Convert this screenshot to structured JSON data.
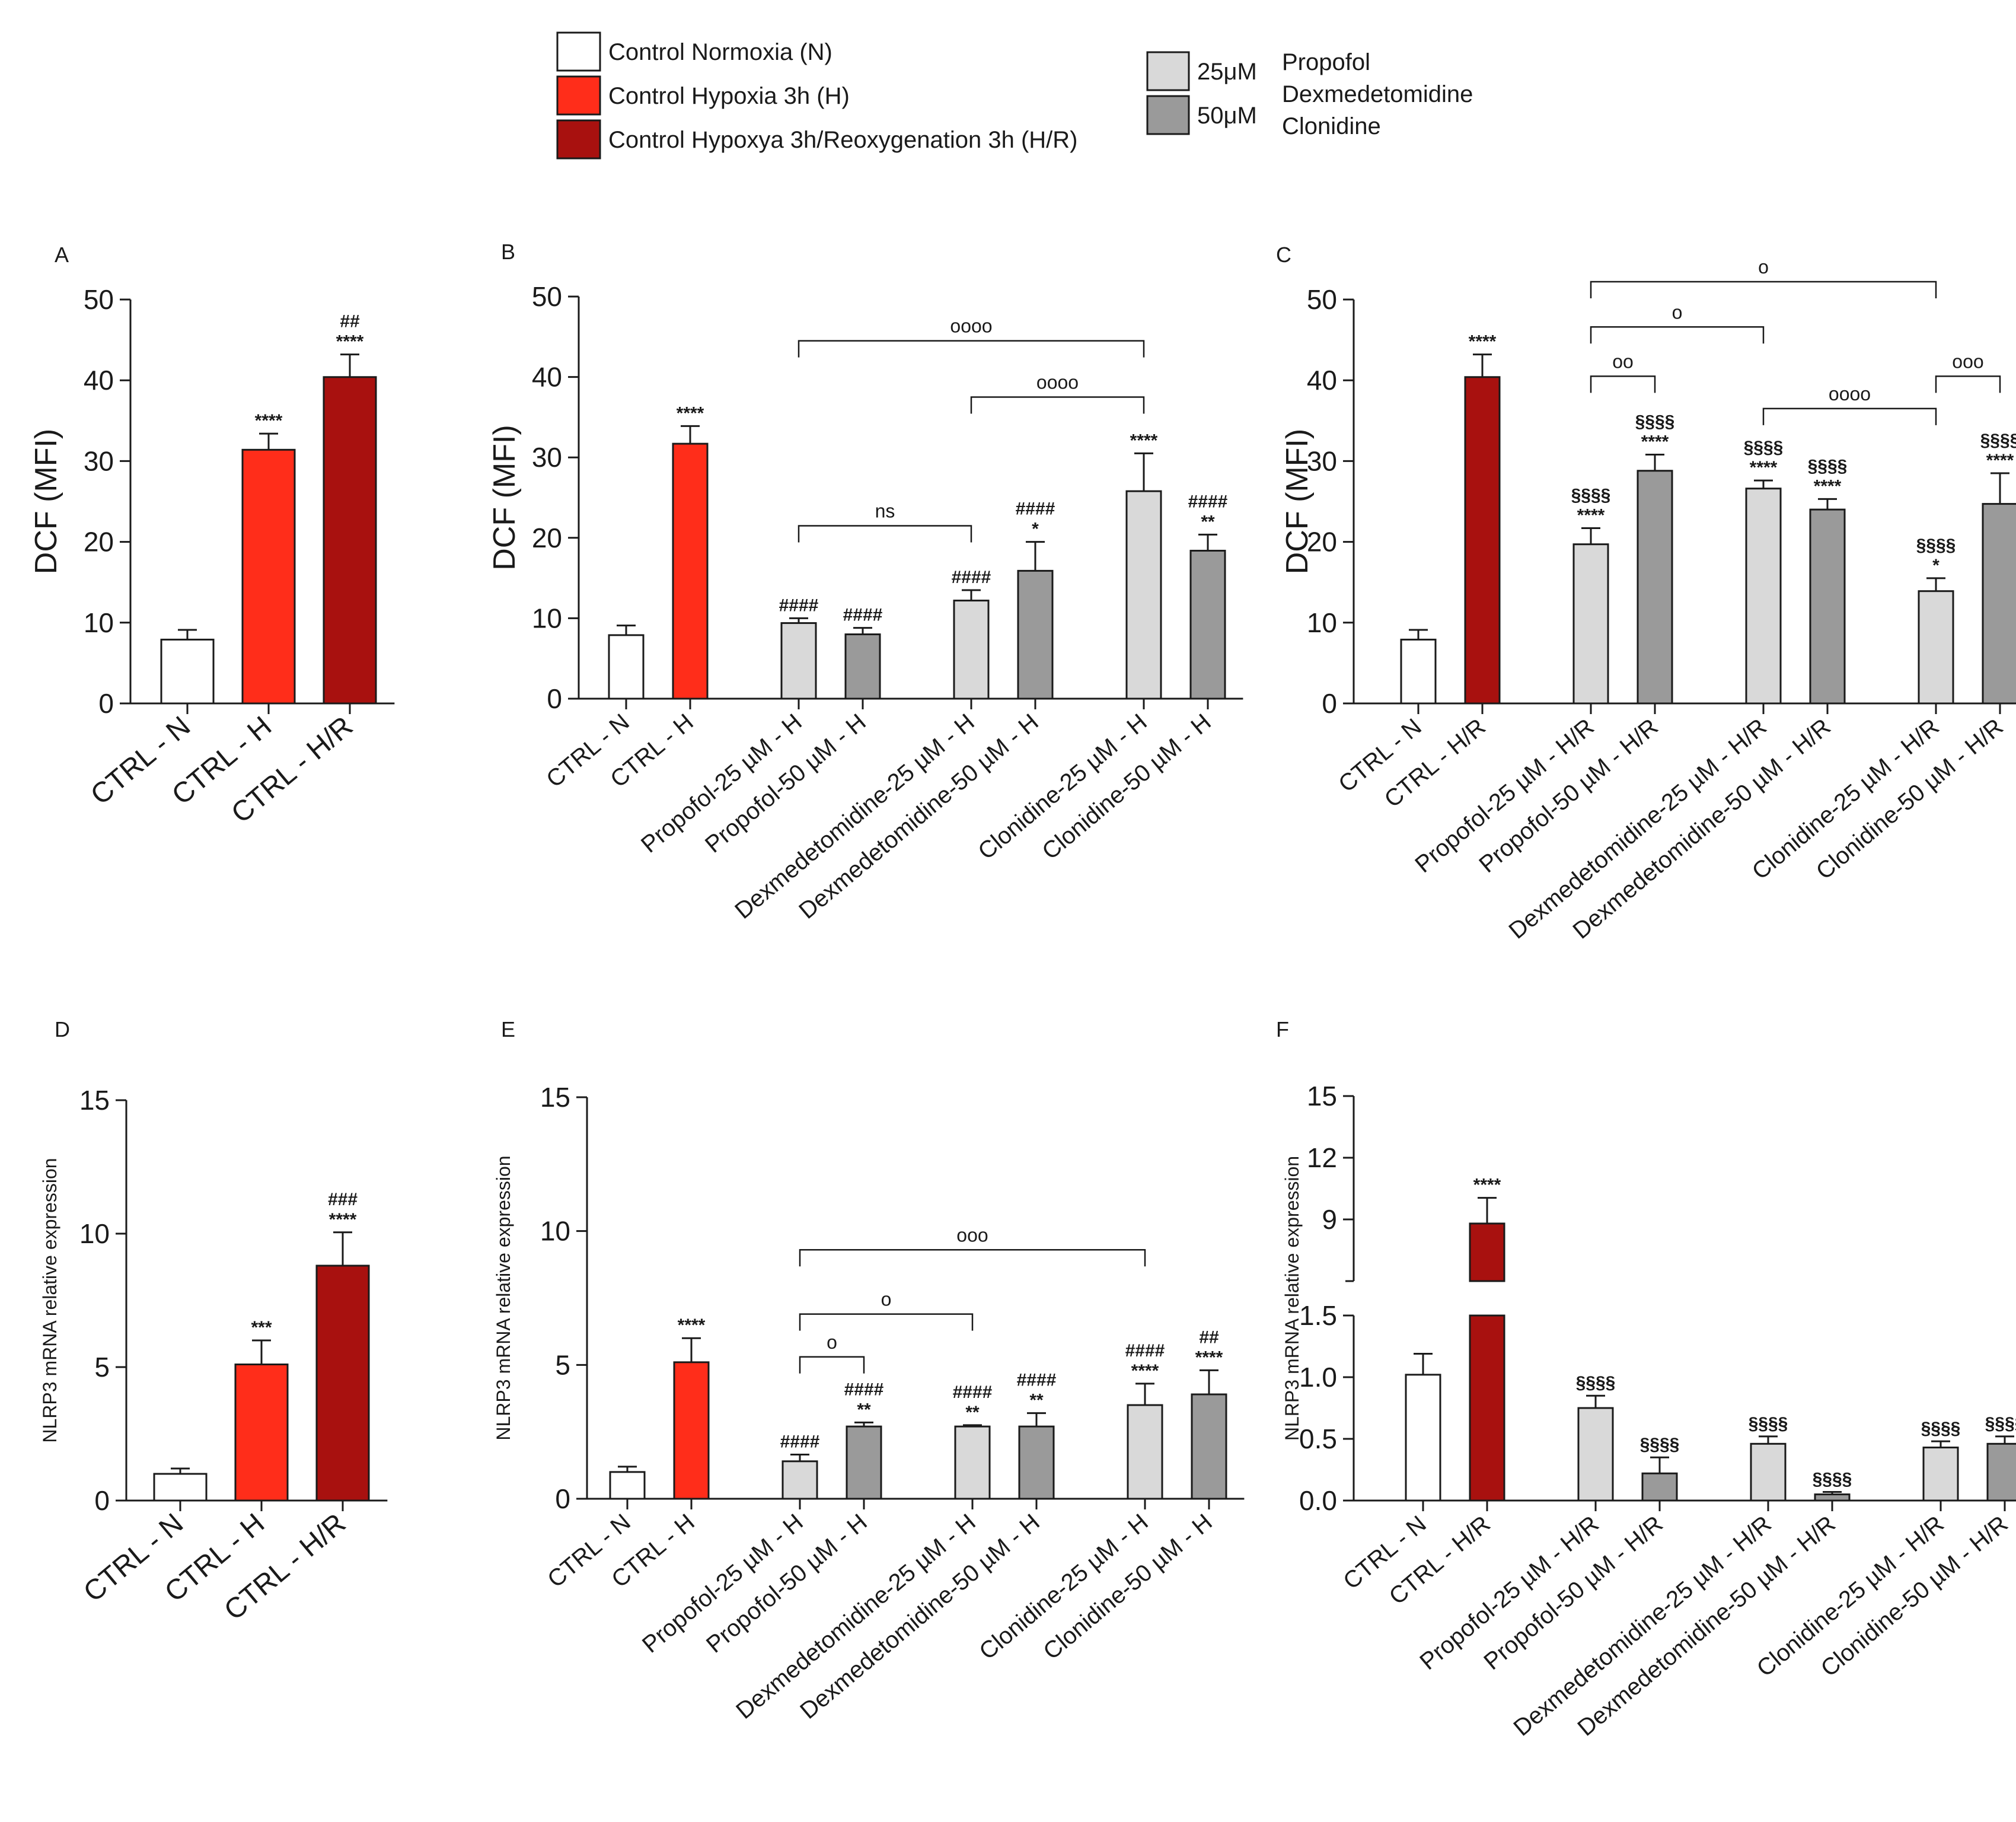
{
  "colors": {
    "N": "#ffffff",
    "H": "#ff2d1a",
    "HR": "#a8110f",
    "c25": "#d9d9d9",
    "c50": "#9a9a9a"
  },
  "legend": {
    "left": [
      {
        "label": "Control Normoxia (N)",
        "color_key": "N"
      },
      {
        "label": "Control Hypoxia 3h (H)",
        "color_key": "H"
      },
      {
        "label": "Control Hypoxya 3h/Reoxygenation 3h (H/R)",
        "color_key": "HR"
      }
    ],
    "right": [
      {
        "label": "25μM",
        "color_key": "c25"
      },
      {
        "label": "50μM",
        "color_key": "c50"
      }
    ],
    "drugs": [
      "Propofol",
      "Dexmedetomidine",
      "Clonidine"
    ]
  },
  "chart_data": [
    {
      "panel": "A",
      "type": "bar",
      "ylabel": "DCF (MFI)",
      "ylim": [
        0,
        50
      ],
      "ticks": [
        "0",
        "10",
        "20",
        "30",
        "40",
        "50"
      ],
      "categories": [
        "CTRL - N",
        "CTRL - H",
        "CTRL - H/R"
      ],
      "values": [
        7.9,
        31.4,
        40.4
      ],
      "errors": [
        1.2,
        2.0,
        2.8
      ],
      "color_keys": [
        "N",
        "H",
        "HR"
      ],
      "annotations": [
        [],
        [
          "****"
        ],
        [
          "##",
          "****"
        ]
      ],
      "brackets": []
    },
    {
      "panel": "B",
      "type": "bar",
      "ylabel": "DCF (MFI)",
      "ylim": [
        0,
        50
      ],
      "ticks": [
        "0",
        "10",
        "20",
        "30",
        "40",
        "50"
      ],
      "categories": [
        "CTRL - N",
        "CTRL - H",
        "Propofol-25 µM - H",
        "Propofol-50 µM - H",
        "Dexmedetomidine-25 µM - H",
        "Dexmedetomidine-50 µM - H",
        "Clonidine-25 µM - H",
        "Clonidine-50 µM - H"
      ],
      "values": [
        7.9,
        31.7,
        9.4,
        8.0,
        12.2,
        15.9,
        25.8,
        18.4
      ],
      "errors": [
        1.2,
        2.2,
        0.6,
        0.8,
        1.3,
        3.6,
        4.7,
        2.0
      ],
      "color_keys": [
        "N",
        "H",
        "c25",
        "c50",
        "c25",
        "c50",
        "c25",
        "c50"
      ],
      "annotations": [
        [],
        [
          "****"
        ],
        [
          "####"
        ],
        [
          "####"
        ],
        [
          "####"
        ],
        [
          "####",
          "*"
        ],
        [
          "****"
        ],
        [
          "####",
          "**"
        ]
      ],
      "brackets": [
        {
          "from": 2,
          "to": 6,
          "label": "oooo",
          "y": 44.5
        },
        {
          "from": 4,
          "to": 6,
          "label": "oooo",
          "y": 37.5
        },
        {
          "from": 2,
          "to": 4,
          "label": "ns",
          "y": 21.5
        }
      ]
    },
    {
      "panel": "C",
      "type": "bar",
      "ylabel": "DCF (MFI)",
      "ylim": [
        0,
        50
      ],
      "ticks": [
        "0",
        "10",
        "20",
        "30",
        "40",
        "50"
      ],
      "categories": [
        "CTRL - N",
        "CTRL - H/R",
        "Propofol-25 µM - H/R",
        "Propofol-50 µM - H/R",
        "Dexmedetomidine-25 µM - H/R",
        "Dexmedetomidine-50 µM - H/R",
        "Clonidine-25 µM - H/R",
        "Clonidine-50 µM - H/R"
      ],
      "values": [
        7.9,
        40.4,
        19.7,
        28.8,
        26.6,
        24.0,
        13.9,
        24.7
      ],
      "errors": [
        1.2,
        2.8,
        2.0,
        2.0,
        1.0,
        1.3,
        1.6,
        3.8
      ],
      "color_keys": [
        "N",
        "HR",
        "c25",
        "c50",
        "c25",
        "c50",
        "c25",
        "c50"
      ],
      "annotations": [
        [],
        [
          "****"
        ],
        [
          "§§§§",
          "****"
        ],
        [
          "§§§§",
          "****"
        ],
        [
          "§§§§",
          "****"
        ],
        [
          "§§§§",
          "****"
        ],
        [
          "§§§§",
          "*"
        ],
        [
          "§§§§",
          "****"
        ]
      ],
      "brackets": [
        {
          "from": 2,
          "to": 6,
          "label": "o",
          "y": 52.2
        },
        {
          "from": 2,
          "to": 4,
          "label": "o",
          "y": 46.6
        },
        {
          "from": 2,
          "to": 3,
          "label": "oo",
          "y": 40.5
        },
        {
          "from": 4,
          "to": 6,
          "label": "oooo",
          "y": 36.5
        },
        {
          "from": 6,
          "to": 7,
          "label": "ooo",
          "y": 40.5
        }
      ]
    },
    {
      "panel": "D",
      "type": "bar",
      "ylabel": "NLRP3 mRNA relative expression",
      "ylim": [
        0,
        15
      ],
      "ticks": [
        "0",
        "5",
        "10",
        "15"
      ],
      "categories": [
        "CTRL - N",
        "CTRL - H",
        "CTRL - H/R"
      ],
      "values": [
        1.0,
        5.1,
        8.8
      ],
      "errors": [
        0.2,
        0.9,
        1.25
      ],
      "color_keys": [
        "N",
        "H",
        "HR"
      ],
      "annotations": [
        [],
        [
          "***"
        ],
        [
          "###",
          "****"
        ]
      ],
      "brackets": []
    },
    {
      "panel": "E",
      "type": "bar",
      "ylabel": "NLRP3 mRNA relative expression",
      "ylim": [
        0,
        15
      ],
      "ticks": [
        "0",
        "5",
        "10",
        "15"
      ],
      "categories": [
        "CTRL - N",
        "CTRL - H",
        "Propofol-25 µM - H",
        "Propofol-50 µM - H",
        "Dexmedetomidine-25 µM - H",
        "Dexmedetomidine-50 µM - H",
        "Clonidine-25 µM - H",
        "Clonidine-50 µM - H"
      ],
      "values": [
        1.0,
        5.1,
        1.4,
        2.7,
        2.7,
        2.7,
        3.5,
        3.9
      ],
      "errors": [
        0.2,
        0.9,
        0.25,
        0.15,
        0.05,
        0.5,
        0.8,
        0.9
      ],
      "color_keys": [
        "N",
        "H",
        "c25",
        "c50",
        "c25",
        "c50",
        "c25",
        "c50"
      ],
      "annotations": [
        [],
        [
          "****"
        ],
        [
          "####"
        ],
        [
          "####",
          "**"
        ],
        [
          "####",
          "**"
        ],
        [
          "####",
          "**"
        ],
        [
          "####",
          "****"
        ],
        [
          "##",
          "****"
        ]
      ],
      "brackets": [
        {
          "from": 2,
          "to": 6,
          "label": "ooo",
          "y": 9.3
        },
        {
          "from": 2,
          "to": 4,
          "label": "o",
          "y": 6.9
        },
        {
          "from": 2,
          "to": 3,
          "label": "o",
          "y": 5.3
        }
      ]
    },
    {
      "panel": "F",
      "type": "bar",
      "ylabel": "NLRP3 mRNA relative expression",
      "broken_axis": true,
      "ticks_upper": [
        "9",
        "12",
        "15"
      ],
      "ticks_lower": [
        "0.0",
        "0.5",
        "1.0",
        "1.5"
      ],
      "categories": [
        "CTRL - N",
        "CTRL - H/R",
        "Propofol-25 µM - H/R",
        "Propofol-50 µM - H/R",
        "Dexmedetomidine-25 µM - H/R",
        "Dexmedetomidine-50 µM - H/R",
        "Clonidine-25 µM - H/R",
        "Clonidine-50 µM - H/R"
      ],
      "values": [
        1.02,
        8.8,
        0.75,
        0.22,
        0.46,
        0.05,
        0.43,
        0.46
      ],
      "errors": [
        0.17,
        1.25,
        0.1,
        0.13,
        0.06,
        0.02,
        0.05,
        0.06
      ],
      "color_keys": [
        "N",
        "HR",
        "c25",
        "c50",
        "c25",
        "c50",
        "c25",
        "c50"
      ],
      "annotations": [
        [],
        [
          "****"
        ],
        [
          "§§§§"
        ],
        [
          "§§§§"
        ],
        [
          "§§§§"
        ],
        [
          "§§§§"
        ],
        [
          "§§§§"
        ],
        [
          "§§§§"
        ]
      ],
      "brackets": []
    }
  ]
}
